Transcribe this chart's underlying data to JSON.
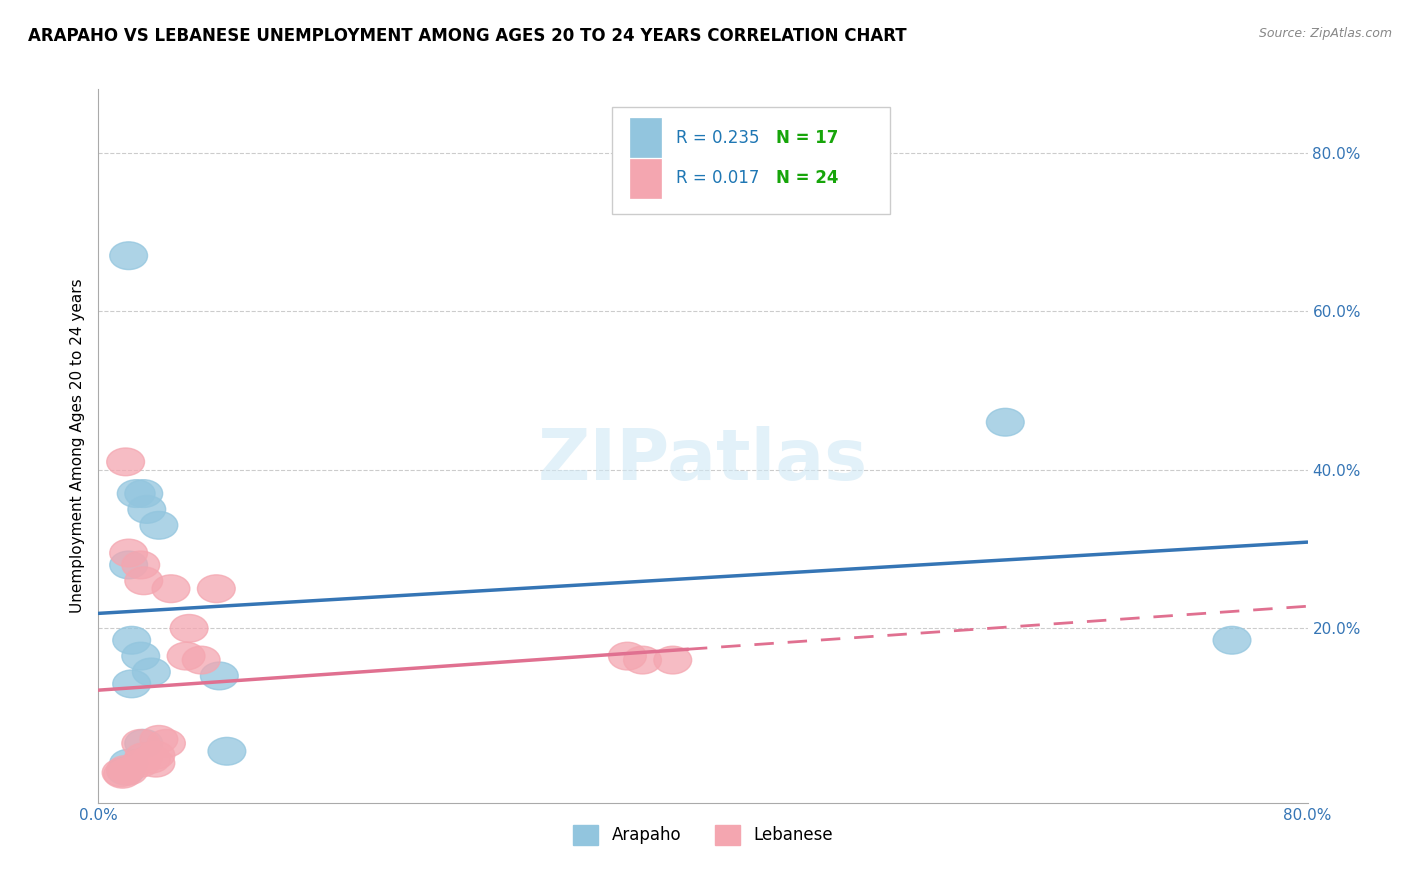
{
  "title": "ARAPAHO VS LEBANESE UNEMPLOYMENT AMONG AGES 20 TO 24 YEARS CORRELATION CHART",
  "source_text": "Source: ZipAtlas.com",
  "ylabel": "Unemployment Among Ages 20 to 24 years",
  "xlim": [
    0.0,
    0.8
  ],
  "ylim": [
    -0.02,
    0.88
  ],
  "xticks": [
    0.0,
    0.1,
    0.2,
    0.3,
    0.4,
    0.5,
    0.6,
    0.7,
    0.8
  ],
  "yticks": [
    0.0,
    0.2,
    0.4,
    0.6,
    0.8
  ],
  "arapaho_color": "#92c5de",
  "lebanese_color": "#f4a6b0",
  "arapaho_line_color": "#3575b5",
  "lebanese_line_color": "#e07090",
  "R_arapaho": "0.235",
  "N_arapaho": "17",
  "R_lebanese": "0.017",
  "N_lebanese": "24",
  "r_text_color": "#1f77b4",
  "n_text_color": "#17a50a",
  "background_color": "#ffffff",
  "watermark_text": "ZIPatlas",
  "arapaho_x": [
    0.02,
    0.025,
    0.03,
    0.032,
    0.04,
    0.02,
    0.022,
    0.028,
    0.035,
    0.022,
    0.08,
    0.085,
    0.6,
    0.75,
    0.03,
    0.02,
    0.018
  ],
  "arapaho_y": [
    0.67,
    0.37,
    0.37,
    0.35,
    0.33,
    0.28,
    0.185,
    0.165,
    0.145,
    0.13,
    0.14,
    0.045,
    0.46,
    0.185,
    0.055,
    0.03,
    0.02
  ],
  "lebanese_x": [
    0.018,
    0.02,
    0.028,
    0.03,
    0.048,
    0.078,
    0.06,
    0.058,
    0.068,
    0.35,
    0.36,
    0.38,
    0.028,
    0.04,
    0.045,
    0.038,
    0.03,
    0.035,
    0.038,
    0.028,
    0.018,
    0.02,
    0.015,
    0.016
  ],
  "lebanese_y": [
    0.41,
    0.295,
    0.28,
    0.26,
    0.25,
    0.25,
    0.2,
    0.165,
    0.16,
    0.165,
    0.16,
    0.16,
    0.055,
    0.06,
    0.055,
    0.04,
    0.038,
    0.035,
    0.03,
    0.03,
    0.022,
    0.02,
    0.018,
    0.016
  ],
  "title_fontsize": 12,
  "axis_label_fontsize": 11,
  "tick_fontsize": 11,
  "legend_fontsize": 12
}
